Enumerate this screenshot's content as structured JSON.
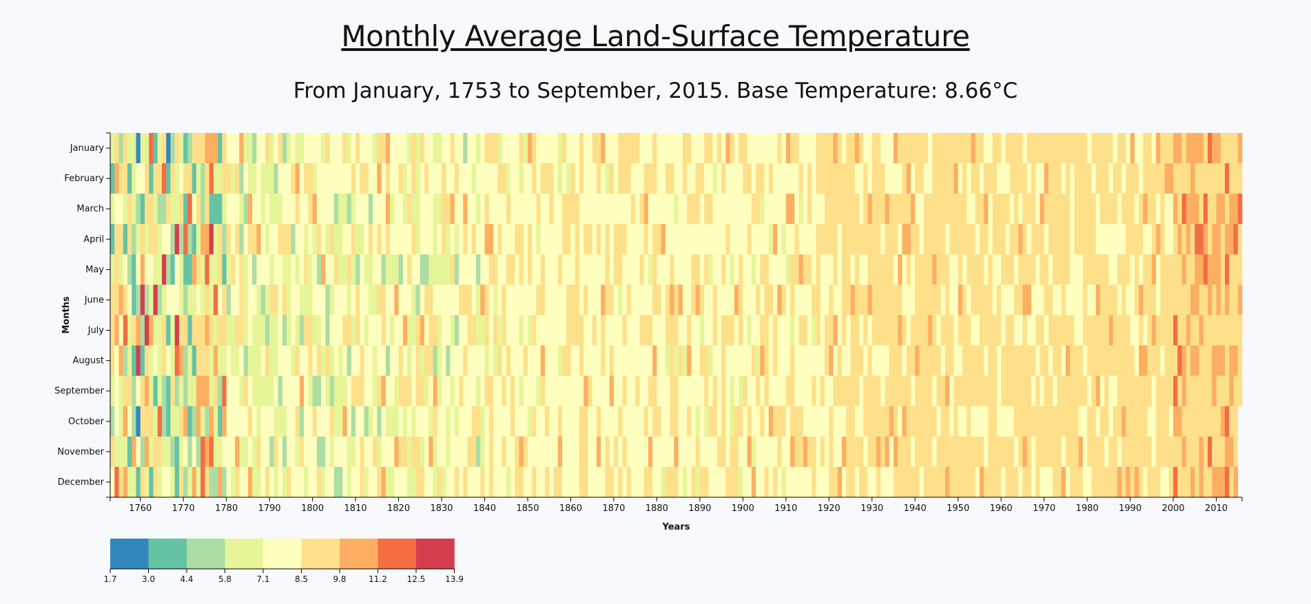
{
  "page": {
    "title": "Monthly Average Land-Surface Temperature",
    "subtitle": "From January, 1753 to September, 2015. Base Temperature: 8.66°C"
  },
  "chart_data": {
    "type": "heatmap",
    "title": "Monthly Average Land-Surface Temperature",
    "subtitle": "From January, 1753 to September, 2015. Base Temperature: 8.66°C",
    "base_temperature": 8.66,
    "xlabel": "Years",
    "ylabel": "Months",
    "x_range": [
      1753,
      2015
    ],
    "x_ticks": [
      1760,
      1770,
      1780,
      1790,
      1800,
      1810,
      1820,
      1830,
      1840,
      1850,
      1860,
      1870,
      1880,
      1890,
      1900,
      1910,
      1920,
      1930,
      1940,
      1950,
      1960,
      1970,
      1980,
      1990,
      2000,
      2010
    ],
    "months": [
      "January",
      "February",
      "March",
      "April",
      "May",
      "June",
      "July",
      "August",
      "September",
      "October",
      "November",
      "December"
    ],
    "last_month_2015": "September",
    "legend": {
      "thresholds": [
        "1.7",
        "3.0",
        "4.4",
        "5.8",
        "7.1",
        "8.5",
        "9.8",
        "11.2",
        "12.5",
        "13.9"
      ],
      "colors": [
        "#3288bd",
        "#66c2a5",
        "#abdda4",
        "#e6f598",
        "#ffffbf",
        "#fee08b",
        "#fdae61",
        "#f46d43",
        "#d53e4f"
      ]
    },
    "color_bands_by_period": [
      {
        "period": "1753-1780",
        "dominant": [
          "#e6f598",
          "#fee08b",
          "#abdda4",
          "#fdae61",
          "#ffffbf"
        ],
        "notes": "highly variable; several #66c2a5 and #3288bd cells in winter, #f46d43/#d53e4f cells in spring-summer"
      },
      {
        "period": "1780-1840",
        "dominant": [
          "#ffffbf",
          "#e6f598",
          "#fee08b"
        ],
        "notes": "cool-neutral with occasional #abdda4 and #fdae61"
      },
      {
        "period": "1840-1920",
        "dominant": [
          "#ffffbf",
          "#fee08b"
        ],
        "notes": "mostly neutral"
      },
      {
        "period": "1920-2000",
        "dominant": [
          "#fee08b",
          "#ffffbf"
        ],
        "notes": "warmer, occasional #fdae61"
      },
      {
        "period": "2000-2015",
        "dominant": [
          "#fee08b",
          "#fdae61"
        ],
        "notes": "warmest, frequent #fdae61 and some #f46d43"
      }
    ]
  }
}
